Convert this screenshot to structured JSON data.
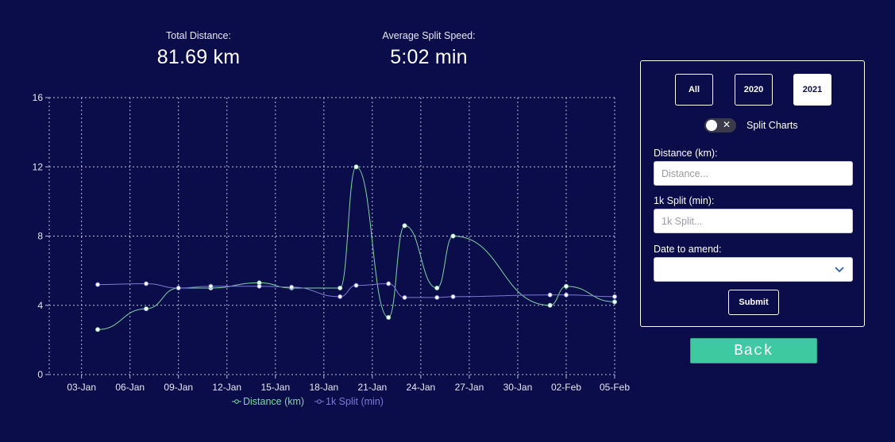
{
  "stats": {
    "total_distance_label": "Total Distance:",
    "total_distance_value": "81.69 km",
    "avg_split_label": "Average Split Speed:",
    "avg_split_value": "5:02 min"
  },
  "panel": {
    "year_buttons": [
      {
        "label": "All",
        "active": false
      },
      {
        "label": "2020",
        "active": false
      },
      {
        "label": "2021",
        "active": true
      }
    ],
    "split_charts_label": "Split Charts",
    "split_charts_on": false,
    "distance_label": "Distance (km):",
    "distance_placeholder": "Distance...",
    "split_label": "1k Split (min):",
    "split_placeholder": "1k Split...",
    "date_label": "Date to amend:",
    "date_value": "",
    "submit_label": "Submit"
  },
  "back_label": "Back",
  "colors": {
    "background": "#0b0d4a",
    "distance_line": "#7fd6a0",
    "split_line": "#7a7ad6",
    "back_button": "#3ec9a0"
  },
  "icons": {
    "select_arrow": "chevron-down-icon",
    "toggle_off": "close-icon"
  },
  "chart_data": {
    "type": "line",
    "x_start": "2021-01-01",
    "x_end": "2021-02-05",
    "x_ticks": [
      {
        "date": "2021-01-03",
        "label": "03-Jan"
      },
      {
        "date": "2021-01-06",
        "label": "06-Jan"
      },
      {
        "date": "2021-01-09",
        "label": "09-Jan"
      },
      {
        "date": "2021-01-12",
        "label": "12-Jan"
      },
      {
        "date": "2021-01-15",
        "label": "15-Jan"
      },
      {
        "date": "2021-01-18",
        "label": "18-Jan"
      },
      {
        "date": "2021-01-21",
        "label": "21-Jan"
      },
      {
        "date": "2021-01-24",
        "label": "24-Jan"
      },
      {
        "date": "2021-01-27",
        "label": "27-Jan"
      },
      {
        "date": "2021-01-30",
        "label": "30-Jan"
      },
      {
        "date": "2021-02-02",
        "label": "02-Feb"
      },
      {
        "date": "2021-02-05",
        "label": "05-Feb"
      }
    ],
    "y_ticks": [
      0,
      4,
      8,
      12,
      16
    ],
    "ylim": [
      0,
      16
    ],
    "grid": true,
    "legend_position": "bottom",
    "series": [
      {
        "name": "Distance (km)",
        "color": "#7fd6a0",
        "x": [
          "2021-01-04",
          "2021-01-07",
          "2021-01-09",
          "2021-01-11",
          "2021-01-14",
          "2021-01-16",
          "2021-01-19",
          "2021-01-20",
          "2021-01-22",
          "2021-01-23",
          "2021-01-25",
          "2021-01-26",
          "2021-02-01",
          "2021-02-02",
          "2021-02-05"
        ],
        "y": [
          2.6,
          3.8,
          5.0,
          5.0,
          5.3,
          5.0,
          5.0,
          12.0,
          3.3,
          8.6,
          5.0,
          8.0,
          4.0,
          5.1,
          4.2
        ]
      },
      {
        "name": "1k Split (min)",
        "color": "#7a7ad6",
        "x": [
          "2021-01-04",
          "2021-01-07",
          "2021-01-09",
          "2021-01-11",
          "2021-01-14",
          "2021-01-16",
          "2021-01-19",
          "2021-01-20",
          "2021-01-22",
          "2021-01-23",
          "2021-01-25",
          "2021-01-26",
          "2021-02-01",
          "2021-02-02",
          "2021-02-05"
        ],
        "y": [
          5.2,
          5.25,
          5.0,
          5.1,
          5.1,
          5.05,
          4.5,
          5.15,
          5.25,
          4.45,
          4.45,
          4.5,
          4.6,
          4.6,
          4.5
        ]
      }
    ]
  }
}
